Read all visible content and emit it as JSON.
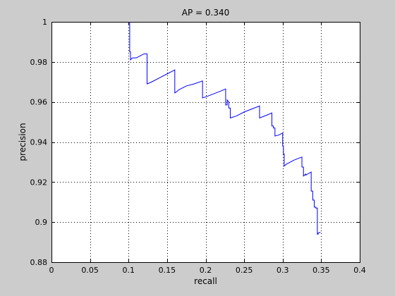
{
  "chart_data": {
    "type": "line",
    "title": "AP = 0.340",
    "xlabel": "recall",
    "ylabel": "precision",
    "xlim": [
      0,
      0.4
    ],
    "ylim": [
      0.88,
      1
    ],
    "xticks": [
      0,
      0.05,
      0.1,
      0.15,
      0.2,
      0.25,
      0.3,
      0.35,
      0.4
    ],
    "yticks": [
      0.88,
      0.9,
      0.92,
      0.94,
      0.96,
      0.98,
      1
    ],
    "xtick_labels": [
      "0",
      "0.05",
      "0.1",
      "0.15",
      "0.2",
      "0.25",
      "0.3",
      "0.35",
      "0.4"
    ],
    "ytick_labels": [
      "0.88",
      "0.9",
      "0.92",
      "0.94",
      "0.96",
      "0.98",
      "1"
    ],
    "grid": true,
    "line_color": "#0000ff",
    "series": [
      {
        "x": [
          0.1015,
          0.1015,
          0.1025,
          0.1025,
          0.105,
          0.11,
          0.115,
          0.12,
          0.124,
          0.124,
          0.13,
          0.14,
          0.15,
          0.155,
          0.16,
          0.16,
          0.162,
          0.165,
          0.175,
          0.185,
          0.196,
          0.196,
          0.2,
          0.21,
          0.22,
          0.226,
          0.226,
          0.228,
          0.228,
          0.23,
          0.23,
          0.232,
          0.232,
          0.24,
          0.25,
          0.26,
          0.27,
          0.27,
          0.28,
          0.286,
          0.286,
          0.288,
          0.288,
          0.29,
          0.29,
          0.295,
          0.3,
          0.3,
          0.301,
          0.301,
          0.302,
          0.302,
          0.305,
          0.315,
          0.325,
          0.325,
          0.327,
          0.327,
          0.33,
          0.33,
          0.337,
          0.337,
          0.339,
          0.339,
          0.341,
          0.341,
          0.343,
          0.343,
          0.345,
          0.345,
          0.346,
          0.346,
          0.349
        ],
        "y": [
          1.0,
          0.985,
          0.985,
          0.981,
          0.982,
          0.982,
          0.983,
          0.984,
          0.984,
          0.969,
          0.97,
          0.972,
          0.974,
          0.975,
          0.976,
          0.9645,
          0.965,
          0.966,
          0.968,
          0.969,
          0.9705,
          0.962,
          0.9625,
          0.964,
          0.9655,
          0.9665,
          0.9585,
          0.9585,
          0.961,
          0.96,
          0.957,
          0.957,
          0.952,
          0.953,
          0.955,
          0.9565,
          0.958,
          0.952,
          0.9535,
          0.9545,
          0.948,
          0.948,
          0.947,
          0.947,
          0.943,
          0.9435,
          0.9445,
          0.938,
          0.938,
          0.934,
          0.934,
          0.928,
          0.929,
          0.931,
          0.9325,
          0.9275,
          0.9275,
          0.923,
          0.924,
          0.9235,
          0.925,
          0.9155,
          0.9155,
          0.911,
          0.911,
          0.9075,
          0.9075,
          0.907,
          0.907,
          0.894,
          0.894,
          0.8945,
          0.895
        ]
      }
    ]
  }
}
